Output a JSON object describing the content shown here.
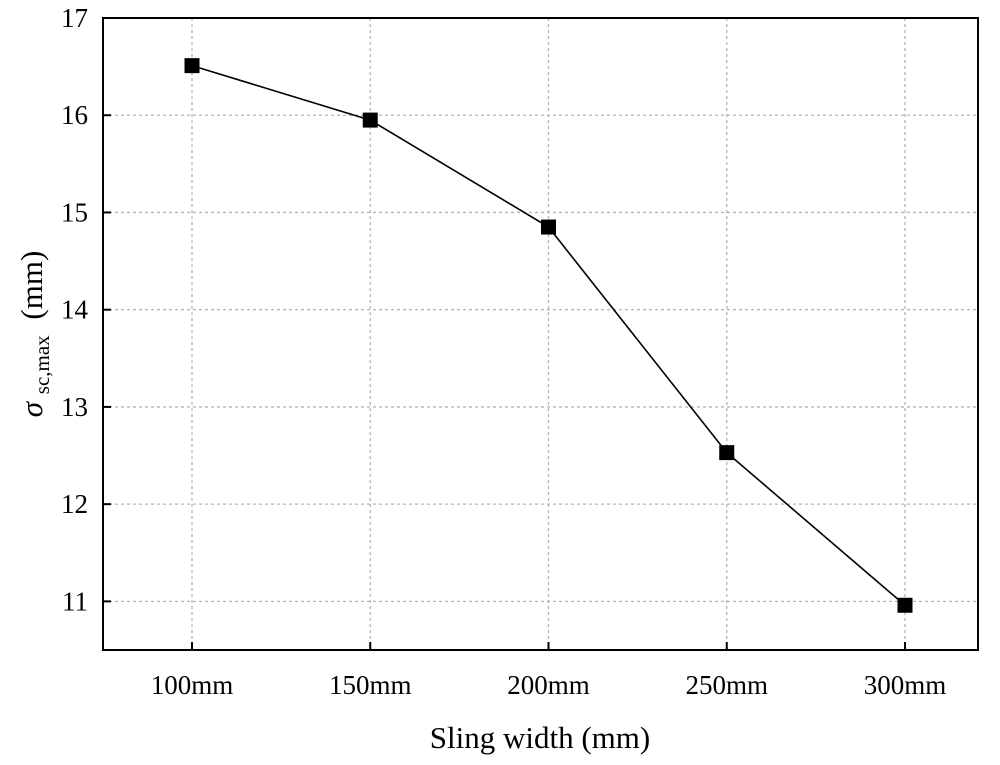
{
  "chart_data": {
    "type": "line",
    "title": "",
    "xlabel": "Sling width (mm)",
    "ylabel_symbol": "σ",
    "ylabel_subscript": "sc,max",
    "ylabel_unit": "(mm)",
    "categories": [
      "100mm",
      "150mm",
      "200mm",
      "250mm",
      "300mm"
    ],
    "series": [
      {
        "name": "σsc,max",
        "values": [
          16.51,
          15.95,
          14.85,
          12.53,
          10.96
        ]
      }
    ],
    "ylim": [
      10.5,
      17
    ],
    "yticks": [
      11,
      12,
      13,
      14,
      15,
      16,
      17
    ],
    "grid": true,
    "legend": "none",
    "colors": {
      "line": "#000000",
      "marker": "#000000",
      "grid": "#b5b5b5"
    }
  }
}
